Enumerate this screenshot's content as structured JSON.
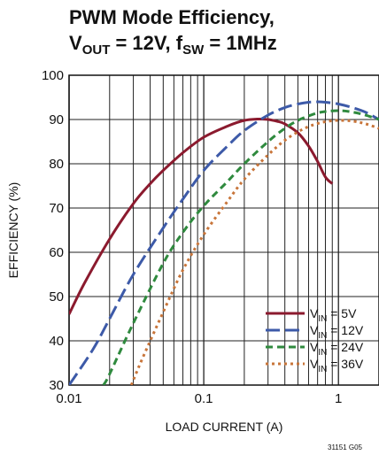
{
  "chart_data": {
    "type": "line",
    "title_line1": "PWM Mode Efficiency,",
    "title_line2_parts": {
      "v": "V",
      "v_sub": "OUT",
      "v_eq": " = 12V, ",
      "f": "f",
      "f_sub": "SW",
      "f_eq": " = 1MHz"
    },
    "xlabel": "LOAD CURRENT (A)",
    "ylabel": "EFFICIENCY (%)",
    "x_scale": "log",
    "xlim": [
      0.01,
      2
    ],
    "ylim": [
      30,
      100
    ],
    "x_ticks": [
      {
        "v": 0.01,
        "label": "0.01"
      },
      {
        "v": 0.1,
        "label": "0.1"
      },
      {
        "v": 1,
        "label": "1"
      }
    ],
    "y_ticks": [
      30,
      40,
      50,
      60,
      70,
      80,
      90,
      100
    ],
    "grid": true,
    "legend_position": "lower-right",
    "series": [
      {
        "name": "V_IN = 5V",
        "label_main": "V",
        "label_sub": "IN",
        "label_rest": " = 5V",
        "color": "#8b1a2e",
        "dash": "solid",
        "x": [
          0.01,
          0.013,
          0.02,
          0.03,
          0.04,
          0.05,
          0.07,
          0.1,
          0.15,
          0.2,
          0.25,
          0.3,
          0.35,
          0.4,
          0.5,
          0.6,
          0.7,
          0.8,
          0.9
        ],
        "y": [
          46,
          53,
          63,
          71,
          75.5,
          78.5,
          82.5,
          86,
          88.5,
          89.8,
          90.1,
          90,
          89.6,
          89,
          87,
          84,
          80.5,
          77,
          75.5
        ]
      },
      {
        "name": "V_IN = 12V",
        "label_main": "V",
        "label_sub": "IN",
        "label_rest": " = 12V",
        "color": "#3d5aa8",
        "dash": "long",
        "x": [
          0.01,
          0.015,
          0.02,
          0.03,
          0.05,
          0.07,
          0.1,
          0.15,
          0.2,
          0.3,
          0.4,
          0.5,
          0.6,
          0.7,
          0.8,
          1,
          1.3,
          1.6,
          2
        ],
        "y": [
          30,
          38,
          45,
          55,
          65.5,
          72,
          78.5,
          84,
          87.5,
          91,
          92.7,
          93.5,
          93.9,
          94,
          93.9,
          93.5,
          92.6,
          91.6,
          90
        ]
      },
      {
        "name": "V_IN = 24V",
        "label_main": "V",
        "label_sub": "IN",
        "label_rest": " = 24V",
        "color": "#2f8a3e",
        "dash": "medium",
        "x": [
          0.018,
          0.02,
          0.03,
          0.05,
          0.07,
          0.1,
          0.15,
          0.2,
          0.3,
          0.4,
          0.5,
          0.6,
          0.7,
          0.8,
          1,
          1.2,
          1.5,
          2
        ],
        "y": [
          30,
          32.5,
          44,
          57.5,
          64.5,
          70.5,
          76,
          80,
          85,
          88,
          89.8,
          90.8,
          91.5,
          91.8,
          92,
          91.8,
          91.2,
          90
        ]
      },
      {
        "name": "V_IN = 36V",
        "label_main": "V",
        "label_sub": "IN",
        "label_rest": " = 36V",
        "color": "#c8753a",
        "dash": "dot",
        "x": [
          0.029,
          0.035,
          0.05,
          0.07,
          0.1,
          0.15,
          0.2,
          0.3,
          0.4,
          0.5,
          0.6,
          0.7,
          0.8,
          1,
          1.3,
          1.6,
          2
        ],
        "y": [
          30,
          36,
          46.5,
          56,
          64,
          71.5,
          76.5,
          82,
          85.3,
          87.2,
          88.4,
          89.1,
          89.5,
          89.8,
          89.6,
          89,
          88
        ]
      }
    ],
    "figure_id": "31151 G05"
  }
}
